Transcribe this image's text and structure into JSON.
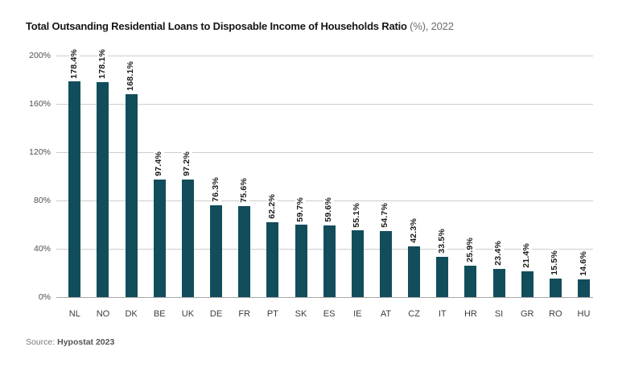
{
  "title": {
    "main": "Total Outsanding Residential Loans to Disposable Income of Households Ratio",
    "suffix": " (%), 2022"
  },
  "source": {
    "label": "Source: ",
    "value": "Hypostat 2023"
  },
  "chart_data": {
    "type": "bar",
    "title": "Total Outsanding Residential Loans to Disposable Income of Households Ratio (%), 2022",
    "categories": [
      "NL",
      "NO",
      "DK",
      "BE",
      "UK",
      "DE",
      "FR",
      "PT",
      "SK",
      "ES",
      "IE",
      "AT",
      "CZ",
      "IT",
      "HR",
      "SI",
      "GR",
      "RO",
      "HU"
    ],
    "values": [
      178.4,
      178.1,
      168.1,
      97.4,
      97.2,
      76.3,
      75.6,
      62.2,
      59.7,
      59.6,
      55.1,
      54.7,
      42.3,
      33.5,
      25.9,
      23.4,
      21.4,
      15.5,
      14.6
    ],
    "value_labels": [
      "178.4%",
      "178.1%",
      "168.1%",
      "97.4%",
      "97.2%",
      "76.3%",
      "75.6%",
      "62.2%",
      "59.7%",
      "59.6%",
      "55.1%",
      "54.7%",
      "42.3%",
      "33.5%",
      "25.9%",
      "23.4%",
      "21.4%",
      "15.5%",
      "14.6%"
    ],
    "xlabel": "",
    "ylabel": "",
    "ylim": [
      0,
      200
    ],
    "ytick_values": [
      0,
      40,
      80,
      120,
      160,
      200
    ],
    "ytick_labels": [
      "0%",
      "40%",
      "80%",
      "120%",
      "160%",
      "200%"
    ],
    "grid": true,
    "legend": false,
    "bar_color": "#124d5c",
    "gridline_color": "#cdcdcd",
    "axis_line_color": "#a8a8a8"
  }
}
